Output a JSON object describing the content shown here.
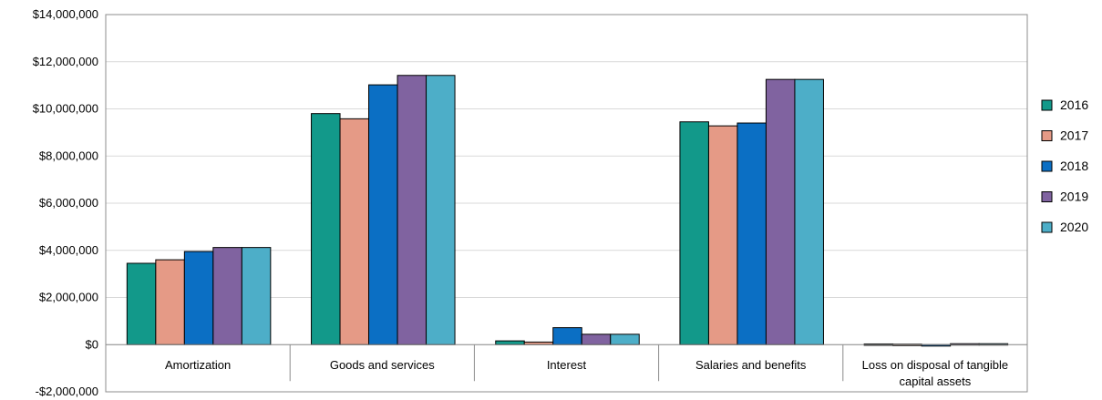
{
  "chart_data": {
    "type": "bar",
    "title": "",
    "xlabel": "",
    "ylabel": "",
    "categories": [
      [
        "Amortization"
      ],
      [
        "Goods and services"
      ],
      [
        "Interest"
      ],
      [
        "Salaries and benefits"
      ],
      [
        "Loss on disposal of tangible",
        "capital assets"
      ]
    ],
    "ylim": [
      -2000000,
      14000000
    ],
    "yticks": [
      -2000000,
      0,
      2000000,
      4000000,
      6000000,
      8000000,
      10000000,
      12000000,
      14000000
    ],
    "ytick_labels": [
      "-$2,000,000",
      "$0",
      "$2,000,000",
      "$4,000,000",
      "$6,000,000",
      "$8,000,000",
      "$10,000,000",
      "$12,000,000",
      "$14,000,000"
    ],
    "grid": true,
    "legend_position": "right",
    "series": [
      {
        "name": "2016",
        "color": "#12998a",
        "values": [
          3450000,
          9800000,
          160000,
          9450000,
          30000
        ]
      },
      {
        "name": "2017",
        "color": "#e59a86",
        "values": [
          3600000,
          9580000,
          110000,
          9280000,
          20000
        ]
      },
      {
        "name": "2018",
        "color": "#0b6fc4",
        "values": [
          3950000,
          11020000,
          720000,
          9400000,
          -60000
        ]
      },
      {
        "name": "2019",
        "color": "#8063a0",
        "values": [
          4120000,
          11420000,
          440000,
          11250000,
          40000
        ]
      },
      {
        "name": "2020",
        "color": "#4daec8",
        "values": [
          4120000,
          11420000,
          440000,
          11250000,
          40000
        ]
      }
    ]
  }
}
